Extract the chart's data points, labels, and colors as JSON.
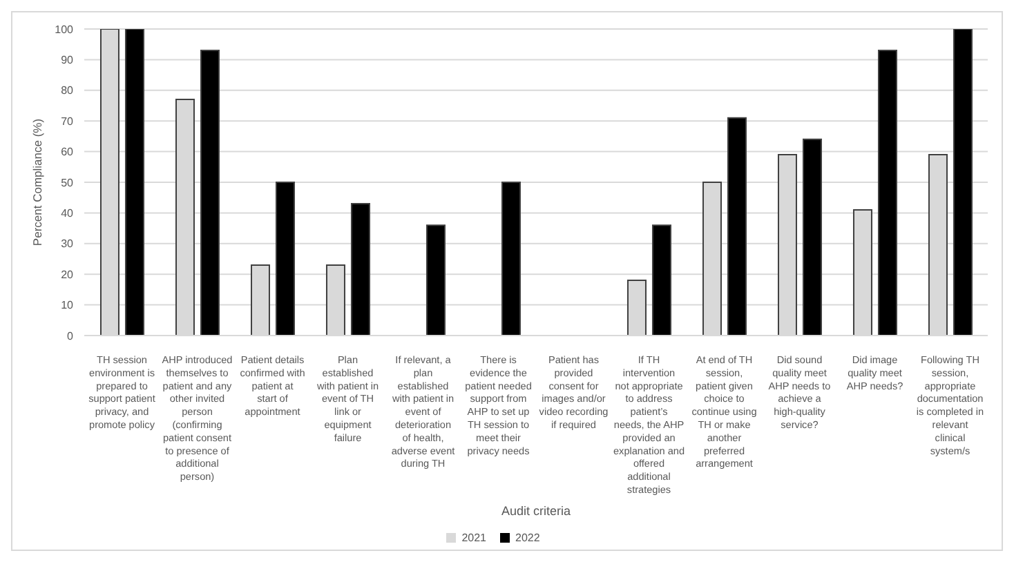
{
  "chart_data": {
    "type": "bar",
    "xlabel": "Audit criteria",
    "ylabel": "Percent Compliance (%)",
    "categories": [
      "TH session environment is prepared to support patient privacy, and promote policy",
      "AHP introduced themselves to patient and  any other invited person (confirming patient consent to presence of additional person)",
      "Patient details confirmed with patient at start of appointment",
      "Plan established with patient in event of TH link or equipment failure",
      "If relevant, a plan established with patient in event of deterioration of health, adverse event during TH",
      "There is evidence the patient needed support from AHP to set up TH session to meet their privacy needs",
      "Patient has provided consent for images and/or video recording if required",
      "If TH intervention not appropriate to address patient’s needs, the AHP provided an explanation and offered additional strategies",
      "At  end of TH session, patient given choice to continue using TH or make another preferred arrangement",
      "Did  sound quality meet AHP needs to achieve a high-quality service?",
      "Did image quality meet AHP needs?",
      "Following TH session, appropriate documentation is completed in relevant clinical system/s"
    ],
    "series": [
      {
        "name": "2021",
        "color": "#d9d9d9",
        "values": [
          100,
          77,
          23,
          23,
          0,
          0,
          0,
          18,
          50,
          59,
          41,
          59
        ]
      },
      {
        "name": "2022",
        "color": "#000000",
        "values": [
          100,
          93,
          50,
          43,
          36,
          50,
          0,
          36,
          71,
          64,
          93,
          100
        ]
      }
    ],
    "ylim": [
      0,
      100
    ],
    "yticks": [
      0,
      10,
      20,
      30,
      40,
      50,
      60,
      70,
      80,
      90,
      100
    ],
    "grid": "y",
    "legend": "bottom"
  }
}
